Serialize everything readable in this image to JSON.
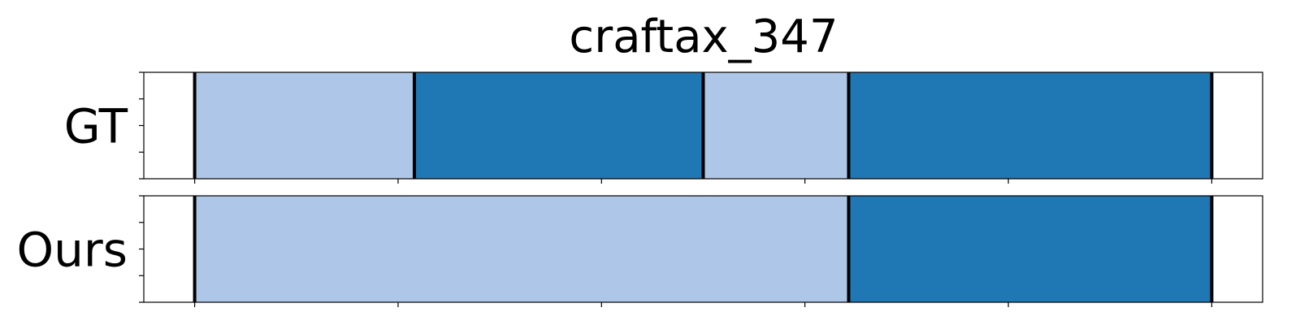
{
  "chart_data": {
    "type": "bar",
    "orientation": "horizontal-segments",
    "title": "craftax_347",
    "xlim": [
      -5,
      105
    ],
    "x_ticks": [
      0,
      20,
      40,
      60,
      80,
      100
    ],
    "grid": false,
    "colors": {
      "light": "#aec7e8",
      "dark": "#1f77b4"
    },
    "series": [
      {
        "name": "GT",
        "segments": [
          {
            "start": 0,
            "end": 21.6,
            "color": "light"
          },
          {
            "start": 21.6,
            "end": 50.0,
            "color": "dark"
          },
          {
            "start": 50.0,
            "end": 64.3,
            "color": "light"
          },
          {
            "start": 64.3,
            "end": 100,
            "color": "dark"
          }
        ],
        "boundaries": [
          0,
          21.6,
          50.0,
          64.3,
          100
        ]
      },
      {
        "name": "Ours",
        "segments": [
          {
            "start": 0,
            "end": 64.3,
            "color": "light"
          },
          {
            "start": 64.3,
            "end": 100,
            "color": "dark"
          }
        ],
        "boundaries": [
          0,
          64.3,
          100
        ]
      }
    ]
  }
}
